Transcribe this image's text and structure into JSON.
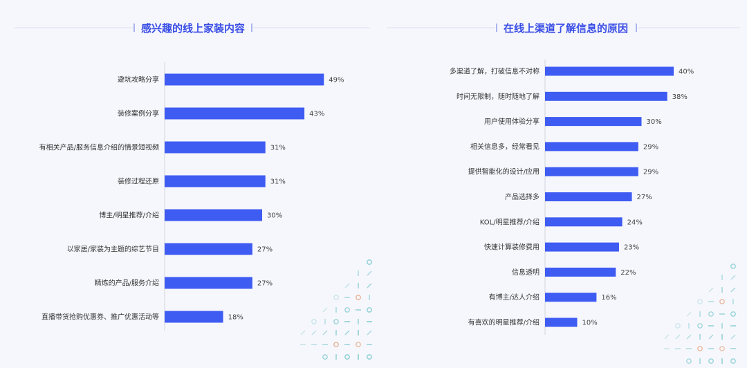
{
  "colors": {
    "background": "#f6f7fc",
    "bar": "#3e5bf2",
    "title": "#3a4ee6",
    "axis": "#d2d5de",
    "deco_teal": "#5bbcc4",
    "deco_orange": "#e2a07a"
  },
  "chart_data": [
    {
      "type": "bar",
      "orientation": "horizontal",
      "title": "感兴趣的线上家装内容",
      "categories": [
        "避坑攻略分享",
        "装修案例分享",
        "有相关产品/服务信息介绍的情景短视频",
        "装修过程还原",
        "博主/明星推荐/介绍",
        "以家居/家装为主题的综艺节目",
        "精炼的产品/服务介绍",
        "直播带货抢购优惠券、推广优惠活动等"
      ],
      "values": [
        49,
        43,
        31,
        31,
        30,
        27,
        27,
        18
      ],
      "value_labels": [
        "49%",
        "43%",
        "31%",
        "31%",
        "30%",
        "27%",
        "27%",
        "18%"
      ],
      "unit": "%",
      "xlim": [
        0,
        100
      ],
      "grid": false,
      "legend": "none"
    },
    {
      "type": "bar",
      "orientation": "horizontal",
      "title": "在线上渠道了解信息的原因",
      "categories": [
        "多渠道了解，打破信息不对称",
        "时间无限制，随时随地了解",
        "用户使用体验分享",
        "相关信息多，经常看见",
        "提供智能化的设计/应用",
        "产品选择多",
        "KOL/明星推荐/介绍",
        "快速计算装修费用",
        "信息透明",
        "有博主/达人介绍",
        "有喜欢的明星推荐/介绍"
      ],
      "values": [
        40,
        38,
        30,
        29,
        29,
        27,
        24,
        23,
        22,
        16,
        10
      ],
      "value_labels": [
        "40%",
        "38%",
        "30%",
        "29%",
        "29%",
        "27%",
        "24%",
        "23%",
        "22%",
        "16%",
        "10%"
      ],
      "unit": "%",
      "xlim": [
        0,
        100
      ],
      "grid": false,
      "legend": "none"
    }
  ]
}
